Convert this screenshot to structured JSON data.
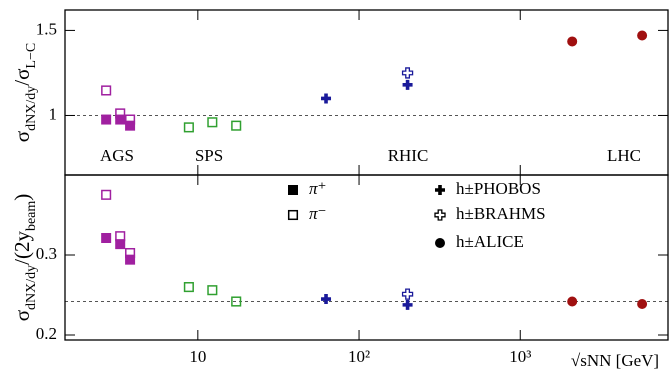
{
  "chart_data": [
    {
      "type": "scatter",
      "ylabel": [
        "σ",
        "dNX/dy",
        "/σ",
        "L−C"
      ],
      "xscale": "log",
      "xlim": [
        1.5,
        8250
      ],
      "ylim": [
        0.65,
        1.62
      ],
      "yticks": [
        1,
        1.5
      ],
      "reference_line": 1,
      "annotations": [
        {
          "text": "AGS",
          "color": "#a020a0"
        },
        {
          "text": "SPS",
          "color": "#30a030"
        },
        {
          "text": "RHIC",
          "color": "#1a1a9a"
        },
        {
          "text": "LHC",
          "color": "#a01010"
        }
      ],
      "series": [
        {
          "marker": "filled-square",
          "x": [
            2.7,
            3.3,
            3.8
          ],
          "values": [
            0.976,
            0.976,
            0.94
          ],
          "colors": [
            "#a020a0",
            "#a020a0",
            "#a020a0"
          ]
        },
        {
          "marker": "open-square",
          "x": [
            2.7,
            3.3,
            3.8,
            8.8,
            12.3,
            17.3
          ],
          "values": [
            1.147,
            1.012,
            0.976,
            0.93,
            0.96,
            0.94
          ],
          "colors": [
            "#a020a0",
            "#a020a0",
            "#a020a0",
            "#30a030",
            "#30a030",
            "#30a030"
          ]
        },
        {
          "marker": "filled-cross",
          "x": [
            62.4,
            200
          ],
          "values": [
            1.1,
            1.18
          ],
          "colors": [
            "#1a1a9a",
            "#1a1a9a"
          ]
        },
        {
          "marker": "open-cross",
          "x": [
            200
          ],
          "values": [
            1.25
          ],
          "colors": [
            "#1a1a9a"
          ]
        },
        {
          "marker": "circle",
          "x": [
            2100,
            5700
          ],
          "values": [
            1.435,
            1.47
          ],
          "colors": [
            "#a01010",
            "#a01010"
          ]
        }
      ]
    },
    {
      "type": "scatter",
      "ylabel": [
        "σ",
        "dNX/dy",
        "/(2y",
        "beam",
        ")"
      ],
      "xlabel": "√sNN [GeV]",
      "xscale": "log",
      "xlim": [
        1.5,
        8250
      ],
      "xticks": [
        10,
        {
          "value": 100,
          "label": "10²"
        },
        {
          "value": 1000,
          "label": "10³"
        }
      ],
      "yscale": "log",
      "ylim": [
        0.195,
        0.45
      ],
      "yticks": [
        0.2,
        0.3
      ],
      "reference_line": 0.237,
      "legend": "upper center",
      "series": [
        {
          "name": "π⁺",
          "marker": "filled-square",
          "x": [
            2.7,
            3.3,
            3.8
          ],
          "values": [
            0.327,
            0.317,
            0.293
          ],
          "colors": [
            "#a020a0",
            "#a020a0",
            "#a020a0"
          ]
        },
        {
          "name": "π⁻",
          "marker": "open-square",
          "x": [
            2.7,
            3.3,
            3.8,
            8.8,
            12.3,
            17.3
          ],
          "values": [
            0.407,
            0.33,
            0.303,
            0.255,
            0.251,
            0.237
          ],
          "colors": [
            "#a020a0",
            "#a020a0",
            "#a020a0",
            "#30a030",
            "#30a030",
            "#30a030"
          ]
        },
        {
          "name": "h±PHOBOS",
          "marker": "filled-cross",
          "x": [
            62.4,
            200
          ],
          "values": [
            0.24,
            0.233
          ],
          "colors": [
            "#1a1a9a",
            "#1a1a9a"
          ]
        },
        {
          "name": "h±BRAHMS",
          "marker": "open-cross",
          "x": [
            200
          ],
          "values": [
            0.246
          ],
          "colors": [
            "#1a1a9a"
          ]
        },
        {
          "name": "h±ALICE",
          "marker": "circle",
          "x": [
            2100,
            5700
          ],
          "values": [
            0.237,
            0.234
          ],
          "colors": [
            "#a01010",
            "#a01010"
          ]
        }
      ]
    }
  ]
}
